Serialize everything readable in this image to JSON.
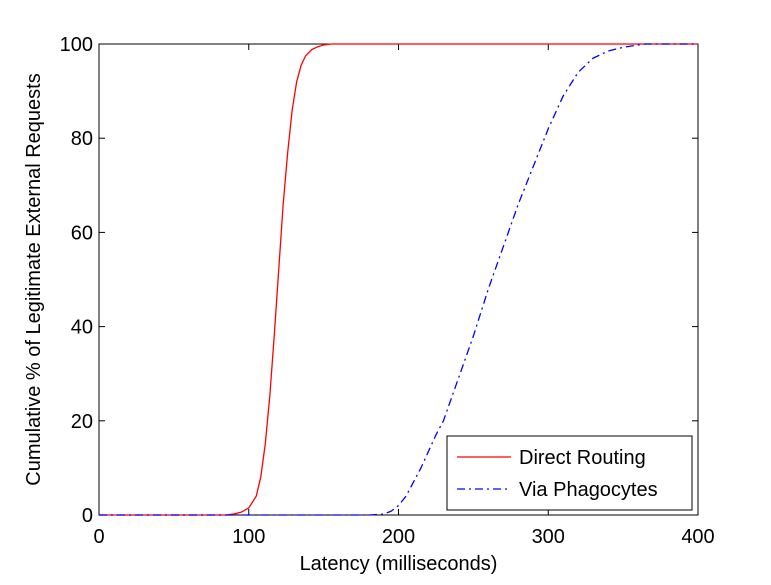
{
  "chart_data": {
    "type": "line",
    "title": "",
    "xlabel": "Latency (milliseconds)",
    "ylabel": "Cumulative % of Legitimate External Requests",
    "xlim": [
      0,
      400
    ],
    "ylim": [
      0,
      100
    ],
    "xticks": [
      0,
      100,
      200,
      300,
      400
    ],
    "yticks": [
      0,
      20,
      40,
      60,
      80,
      100
    ],
    "xtick_labels": [
      "0",
      "100",
      "200",
      "300",
      "400"
    ],
    "ytick_labels": [
      "0",
      "20",
      "40",
      "60",
      "80",
      "100"
    ],
    "grid": false,
    "legend_position": "bottom-right",
    "series": [
      {
        "name": "Direct Routing",
        "color": "#ff0000",
        "line_style": "solid",
        "x": [
          0,
          85,
          90,
          95,
          100,
          105,
          108,
          111,
          114,
          117,
          120,
          123,
          126,
          129,
          132,
          135,
          138,
          142,
          146,
          150,
          155,
          160,
          400
        ],
        "y": [
          0,
          0,
          0.2,
          0.6,
          1.5,
          4,
          8,
          15,
          25,
          38,
          52,
          66,
          77,
          86,
          92,
          95.5,
          97.5,
          98.8,
          99.4,
          99.8,
          100,
          100,
          100
        ]
      },
      {
        "name": "Via Phagocytes",
        "color": "#0000ff",
        "line_style": "dashdot",
        "x": [
          0,
          180,
          190,
          195,
          200,
          205,
          210,
          215,
          220,
          225,
          230,
          240,
          250,
          260,
          270,
          280,
          290,
          300,
          310,
          320,
          330,
          340,
          350,
          360,
          365,
          400
        ],
        "y": [
          0,
          0,
          0.2,
          0.8,
          2,
          4,
          7,
          10,
          13.5,
          17,
          20,
          29,
          38,
          48,
          57,
          66,
          74,
          82,
          89,
          94,
          97,
          98.5,
          99.3,
          99.8,
          100,
          100
        ]
      }
    ]
  }
}
